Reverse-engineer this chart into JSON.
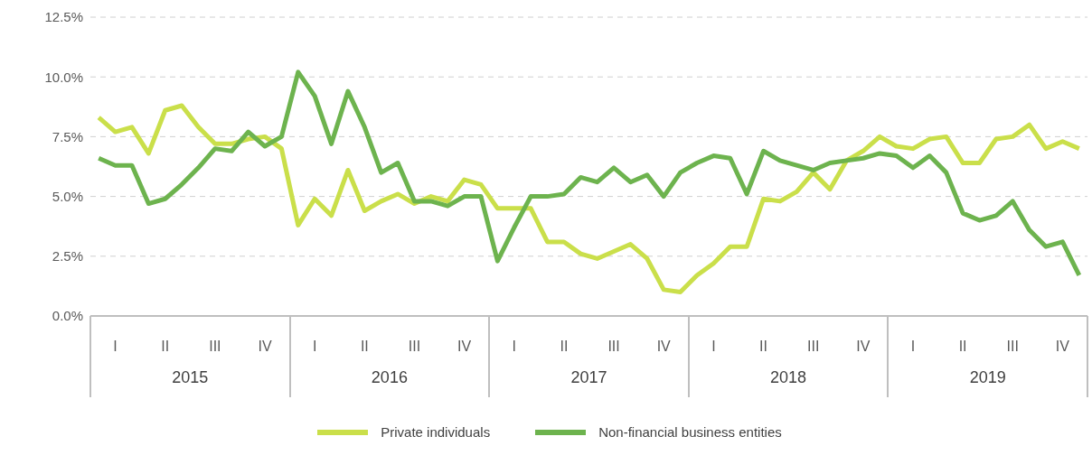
{
  "chart_data": {
    "type": "line",
    "categories": [
      null,
      "I",
      null,
      null,
      "II",
      null,
      null,
      "III",
      null,
      null,
      "IV",
      null,
      null,
      "I",
      null,
      null,
      "II",
      null,
      null,
      "III",
      null,
      null,
      "IV",
      null,
      null,
      "I",
      null,
      null,
      "II",
      null,
      null,
      "III",
      null,
      null,
      "IV",
      null,
      null,
      "I",
      null,
      null,
      "II",
      null,
      null,
      "III",
      null,
      null,
      "IV",
      null,
      null,
      "I",
      null,
      null,
      "II",
      null,
      null,
      "III",
      null,
      null,
      "IV",
      null
    ],
    "annotations": [
      "2015",
      "2016",
      "2017",
      "2018",
      "2019"
    ],
    "series": [
      {
        "name": "Private individuals",
        "color": "#cadf4a",
        "values": [
          8.3,
          7.7,
          7.9,
          6.8,
          8.6,
          8.8,
          7.9,
          7.2,
          7.2,
          7.4,
          7.5,
          7.0,
          3.8,
          4.9,
          4.2,
          6.1,
          4.4,
          4.8,
          5.1,
          4.7,
          5.0,
          4.8,
          5.7,
          5.5,
          4.5,
          4.5,
          4.5,
          3.1,
          3.1,
          2.6,
          2.4,
          2.7,
          3.0,
          2.4,
          1.1,
          1.0,
          1.7,
          2.2,
          2.9,
          2.9,
          4.9,
          4.8,
          5.2,
          6.0,
          5.3,
          6.5,
          6.9,
          7.5,
          7.1,
          7.0,
          7.4,
          7.5,
          6.4,
          6.4,
          7.4,
          7.5,
          8.0,
          7.0,
          7.3,
          7.0
        ]
      },
      {
        "name": "Non-financial business entities",
        "color": "#6db34e",
        "values": [
          6.6,
          6.3,
          6.3,
          4.7,
          4.9,
          5.5,
          6.2,
          7.0,
          6.9,
          7.7,
          7.1,
          7.5,
          10.2,
          9.2,
          7.2,
          9.4,
          7.9,
          6.0,
          6.4,
          4.8,
          4.8,
          4.6,
          5.0,
          5.0,
          2.3,
          3.7,
          5.0,
          5.0,
          5.1,
          5.8,
          5.6,
          6.2,
          5.6,
          5.9,
          5.0,
          6.0,
          6.4,
          6.7,
          6.6,
          5.1,
          6.9,
          6.5,
          6.3,
          6.1,
          6.4,
          6.5,
          6.6,
          6.8,
          6.7,
          6.2,
          6.7,
          6.0,
          4.3,
          4.0,
          4.2,
          4.8,
          3.6,
          2.9,
          3.1,
          1.7
        ]
      }
    ],
    "ylim": [
      0,
      12.5
    ],
    "yticks": [
      {
        "value": 0,
        "label": "0.0%"
      },
      {
        "value": 2.5,
        "label": "2.5%"
      },
      {
        "value": 5,
        "label": "5.0%"
      },
      {
        "value": 7.5,
        "label": "7.5%"
      },
      {
        "value": 10,
        "label": "10.0%"
      },
      {
        "value": 12.5,
        "label": "12.5%"
      }
    ],
    "grid": "y",
    "legend": "bottom",
    "marker": "none",
    "line_style": "solid"
  }
}
